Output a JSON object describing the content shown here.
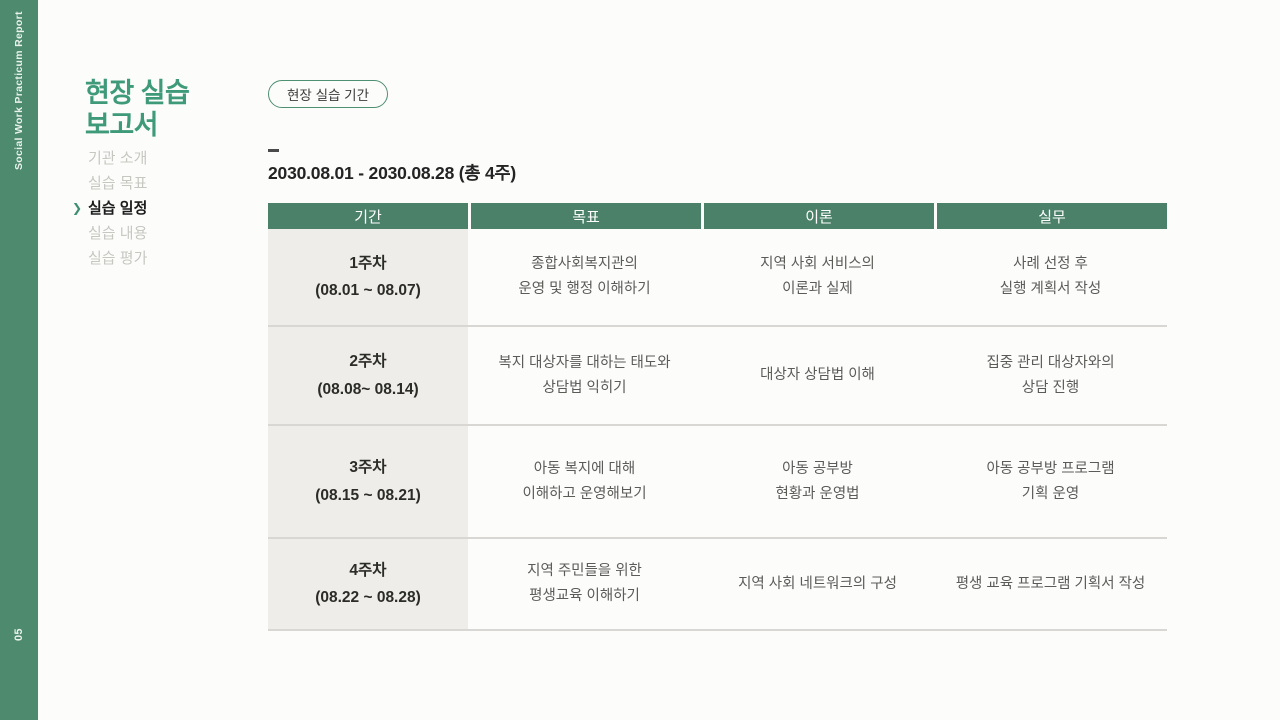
{
  "colors": {
    "sidebar_green": "#4e8a6e",
    "header_green": "#4a8168",
    "title_green": "#3f9a7a",
    "badge_border_green": "#4f8f72",
    "first_column_bg": "#eeedea",
    "page_background": "#fcfdfb"
  },
  "sidebar": {
    "vertical_title": "Social Work Practicum Report",
    "page_number": "05"
  },
  "panel": {
    "title_lines": [
      "현장 실습",
      "보고서"
    ],
    "chevron": "❯",
    "nav": [
      {
        "label": "기관 소개",
        "active": false
      },
      {
        "label": "실습 목표",
        "active": false
      },
      {
        "label": "실습 일정",
        "active": true
      },
      {
        "label": "실습 내용",
        "active": false
      },
      {
        "label": "실습 평가",
        "active": false
      }
    ]
  },
  "main": {
    "badge_label": "현장 실습 기간",
    "period": "2030.08.01 - 2030.08.28 (총 4주)",
    "table": {
      "headers": [
        "기간",
        "목표",
        "이론",
        "실무"
      ],
      "rows": [
        {
          "period": [
            "1주차",
            "(08.01 ~ 08.07)"
          ],
          "goal": [
            "종합사회복지관의",
            "운영 및 행정 이해하기"
          ],
          "theory": [
            "지역 사회 서비스의",
            "이론과 실제"
          ],
          "practice": [
            "사례 선정 후",
            "실행 계획서 작성"
          ]
        },
        {
          "period": [
            "2주차",
            "(08.08~ 08.14)"
          ],
          "goal": [
            "복지 대상자를 대하는 태도와",
            "상담법 익히기"
          ],
          "theory": [
            "대상자 상담법 이해"
          ],
          "practice": [
            "집중 관리 대상자와의",
            "상담 진행"
          ]
        },
        {
          "period": [
            "3주차",
            "(08.15 ~ 08.21)"
          ],
          "goal": [
            "아동 복지에 대해",
            "이해하고 운영해보기"
          ],
          "theory": [
            "아동 공부방",
            "현황과 운영법"
          ],
          "practice": [
            "아동 공부방 프로그램",
            "기획 운영"
          ]
        },
        {
          "period": [
            "4주차",
            "(08.22 ~ 08.28)"
          ],
          "goal": [
            "지역 주민들을 위한",
            "평생교육 이해하기"
          ],
          "theory": [
            "지역 사회 네트워크의 구성"
          ],
          "practice": [
            "평생 교육 프로그램 기획서 작성"
          ]
        }
      ]
    }
  }
}
